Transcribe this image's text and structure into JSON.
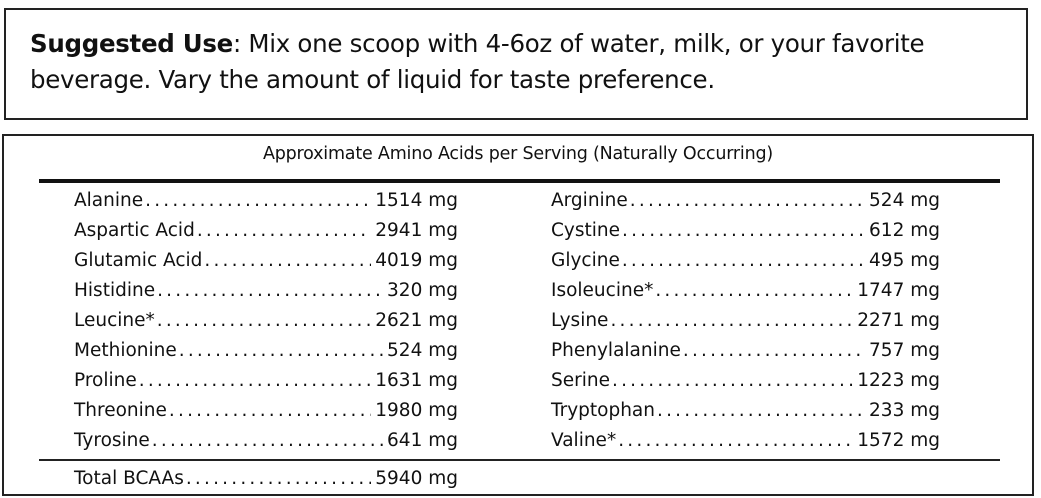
{
  "suggested_use": {
    "label": "Suggested Use",
    "text": ": Mix one scoop with 4-6oz of water, milk, or your favorite beverage. Vary the amount of liquid for taste preference."
  },
  "amino_table": {
    "heading": "Approximate Amino Acids per Serving (Naturally Occurring)",
    "left": [
      {
        "name": "Alanine",
        "value": "1514 mg"
      },
      {
        "name": "Aspartic Acid",
        "value": "2941 mg"
      },
      {
        "name": "Glutamic Acid",
        "value": "4019 mg"
      },
      {
        "name": "Histidine",
        "value": "320 mg"
      },
      {
        "name": "Leucine*",
        "value": "2621 mg"
      },
      {
        "name": "Methionine",
        "value": "524 mg"
      },
      {
        "name": "Proline",
        "value": "1631 mg"
      },
      {
        "name": "Threonine",
        "value": "1980 mg"
      },
      {
        "name": "Tyrosine",
        "value": "641 mg"
      }
    ],
    "right": [
      {
        "name": "Arginine",
        "value": "524 mg"
      },
      {
        "name": "Cystine",
        "value": "612 mg"
      },
      {
        "name": "Glycine",
        "value": "495 mg"
      },
      {
        "name": "Isoleucine*",
        "value": "1747 mg"
      },
      {
        "name": "Lysine",
        "value": "2271 mg"
      },
      {
        "name": "Phenylalanine",
        "value": "757 mg"
      },
      {
        "name": "Serine",
        "value": "1223 mg"
      },
      {
        "name": "Tryptophan",
        "value": "233 mg"
      },
      {
        "name": "Valine*",
        "value": "1572 mg"
      }
    ],
    "total": {
      "name": "Total BCAAs",
      "value": "5940 mg"
    }
  }
}
